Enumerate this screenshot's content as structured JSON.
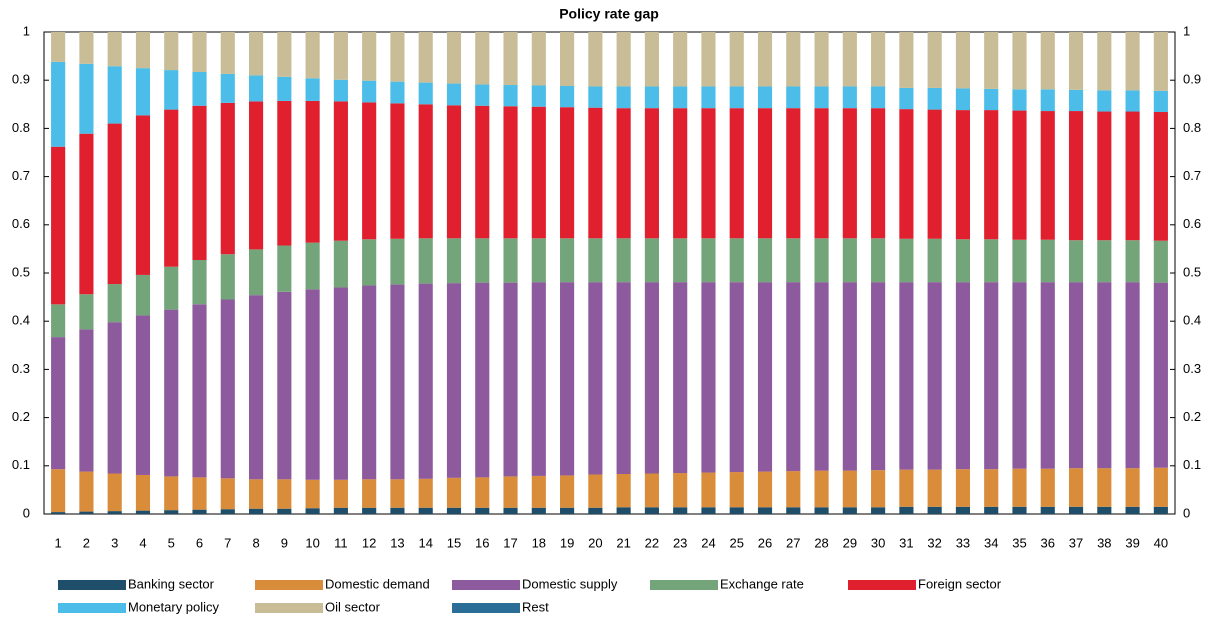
{
  "chart_data": {
    "type": "stacked_bar",
    "title": "Policy rate gap",
    "categories": [
      1,
      2,
      3,
      4,
      5,
      6,
      7,
      8,
      9,
      10,
      11,
      12,
      13,
      14,
      15,
      16,
      17,
      18,
      19,
      20,
      21,
      22,
      23,
      24,
      25,
      26,
      27,
      28,
      29,
      30,
      31,
      32,
      33,
      34,
      35,
      36,
      37,
      38,
      39,
      40
    ],
    "series": [
      {
        "name": "Banking sector",
        "color": "#1f4e6b",
        "values": [
          0.004,
          0.005,
          0.006,
          0.007,
          0.008,
          0.009,
          0.01,
          0.011,
          0.011,
          0.012,
          0.013,
          0.013,
          0.013,
          0.013,
          0.013,
          0.013,
          0.013,
          0.013,
          0.013,
          0.013,
          0.014,
          0.014,
          0.014,
          0.014,
          0.014,
          0.014,
          0.014,
          0.014,
          0.014,
          0.014,
          0.015,
          0.015,
          0.015,
          0.015,
          0.015,
          0.015,
          0.015,
          0.015,
          0.015,
          0.015
        ]
      },
      {
        "name": "Domestic demand",
        "color": "#d98c3a",
        "values": [
          0.089,
          0.083,
          0.078,
          0.074,
          0.07,
          0.067,
          0.064,
          0.061,
          0.061,
          0.059,
          0.058,
          0.059,
          0.059,
          0.06,
          0.062,
          0.063,
          0.065,
          0.066,
          0.067,
          0.069,
          0.069,
          0.07,
          0.071,
          0.072,
          0.073,
          0.074,
          0.075,
          0.076,
          0.076,
          0.077,
          0.077,
          0.077,
          0.078,
          0.078,
          0.079,
          0.079,
          0.08,
          0.08,
          0.08,
          0.081
        ]
      },
      {
        "name": "Domestic supply",
        "color": "#8e5a9e",
        "values": [
          0.274,
          0.295,
          0.314,
          0.331,
          0.346,
          0.359,
          0.371,
          0.382,
          0.389,
          0.395,
          0.399,
          0.402,
          0.404,
          0.405,
          0.404,
          0.404,
          0.402,
          0.402,
          0.401,
          0.399,
          0.398,
          0.397,
          0.396,
          0.395,
          0.394,
          0.393,
          0.392,
          0.391,
          0.391,
          0.39,
          0.389,
          0.389,
          0.388,
          0.388,
          0.387,
          0.387,
          0.386,
          0.386,
          0.386,
          0.384
        ]
      },
      {
        "name": "Exchange rate",
        "color": "#74a57a",
        "values": [
          0.068,
          0.073,
          0.079,
          0.084,
          0.089,
          0.092,
          0.094,
          0.095,
          0.096,
          0.097,
          0.097,
          0.096,
          0.095,
          0.094,
          0.093,
          0.092,
          0.092,
          0.091,
          0.091,
          0.091,
          0.091,
          0.091,
          0.091,
          0.091,
          0.091,
          0.091,
          0.091,
          0.091,
          0.091,
          0.091,
          0.09,
          0.09,
          0.089,
          0.089,
          0.088,
          0.088,
          0.087,
          0.087,
          0.087,
          0.087
        ]
      },
      {
        "name": "Foreign sector",
        "color": "#e0202e",
        "values": [
          0.327,
          0.333,
          0.333,
          0.331,
          0.326,
          0.32,
          0.314,
          0.307,
          0.3,
          0.294,
          0.289,
          0.284,
          0.281,
          0.278,
          0.276,
          0.275,
          0.274,
          0.273,
          0.272,
          0.271,
          0.27,
          0.27,
          0.27,
          0.27,
          0.27,
          0.27,
          0.27,
          0.27,
          0.27,
          0.27,
          0.269,
          0.268,
          0.268,
          0.268,
          0.268,
          0.267,
          0.268,
          0.267,
          0.267,
          0.267
        ]
      },
      {
        "name": "Monetary policy",
        "color": "#4bbde8",
        "values": [
          0.176,
          0.145,
          0.119,
          0.098,
          0.082,
          0.07,
          0.06,
          0.054,
          0.05,
          0.047,
          0.045,
          0.045,
          0.045,
          0.045,
          0.045,
          0.044,
          0.044,
          0.044,
          0.044,
          0.044,
          0.045,
          0.045,
          0.045,
          0.045,
          0.045,
          0.045,
          0.045,
          0.045,
          0.045,
          0.045,
          0.044,
          0.045,
          0.045,
          0.044,
          0.044,
          0.045,
          0.044,
          0.044,
          0.044,
          0.044
        ]
      },
      {
        "name": "Oil sector",
        "color": "#c8bd96",
        "values": [
          0.062,
          0.066,
          0.071,
          0.075,
          0.079,
          0.083,
          0.087,
          0.09,
          0.093,
          0.096,
          0.099,
          0.101,
          0.103,
          0.105,
          0.107,
          0.109,
          0.11,
          0.111,
          0.112,
          0.113,
          0.113,
          0.113,
          0.113,
          0.113,
          0.113,
          0.113,
          0.113,
          0.113,
          0.113,
          0.113,
          0.116,
          0.116,
          0.117,
          0.118,
          0.119,
          0.119,
          0.12,
          0.121,
          0.121,
          0.122
        ]
      },
      {
        "name": "Rest",
        "color": "#2a6d96",
        "values": [
          0,
          0,
          0,
          0,
          0,
          0,
          0,
          0,
          0,
          0,
          0,
          0,
          0,
          0,
          0,
          0,
          0,
          0,
          0,
          0,
          0,
          0,
          0,
          0,
          0,
          0,
          0,
          0,
          0,
          0,
          0,
          0,
          0,
          0,
          0,
          0,
          0,
          0,
          0,
          0
        ]
      }
    ],
    "ylim": [
      0,
      1
    ],
    "yticks": [
      0,
      0.1,
      0.2,
      0.3,
      0.4,
      0.5,
      0.6,
      0.7,
      0.8,
      0.9,
      1
    ],
    "y2lim": [
      0,
      1
    ],
    "y2ticks": [
      0,
      0.1,
      0.2,
      0.3,
      0.4,
      0.5,
      0.6,
      0.7,
      0.8,
      0.9,
      1
    ],
    "grid": false,
    "legend": "bottom"
  }
}
